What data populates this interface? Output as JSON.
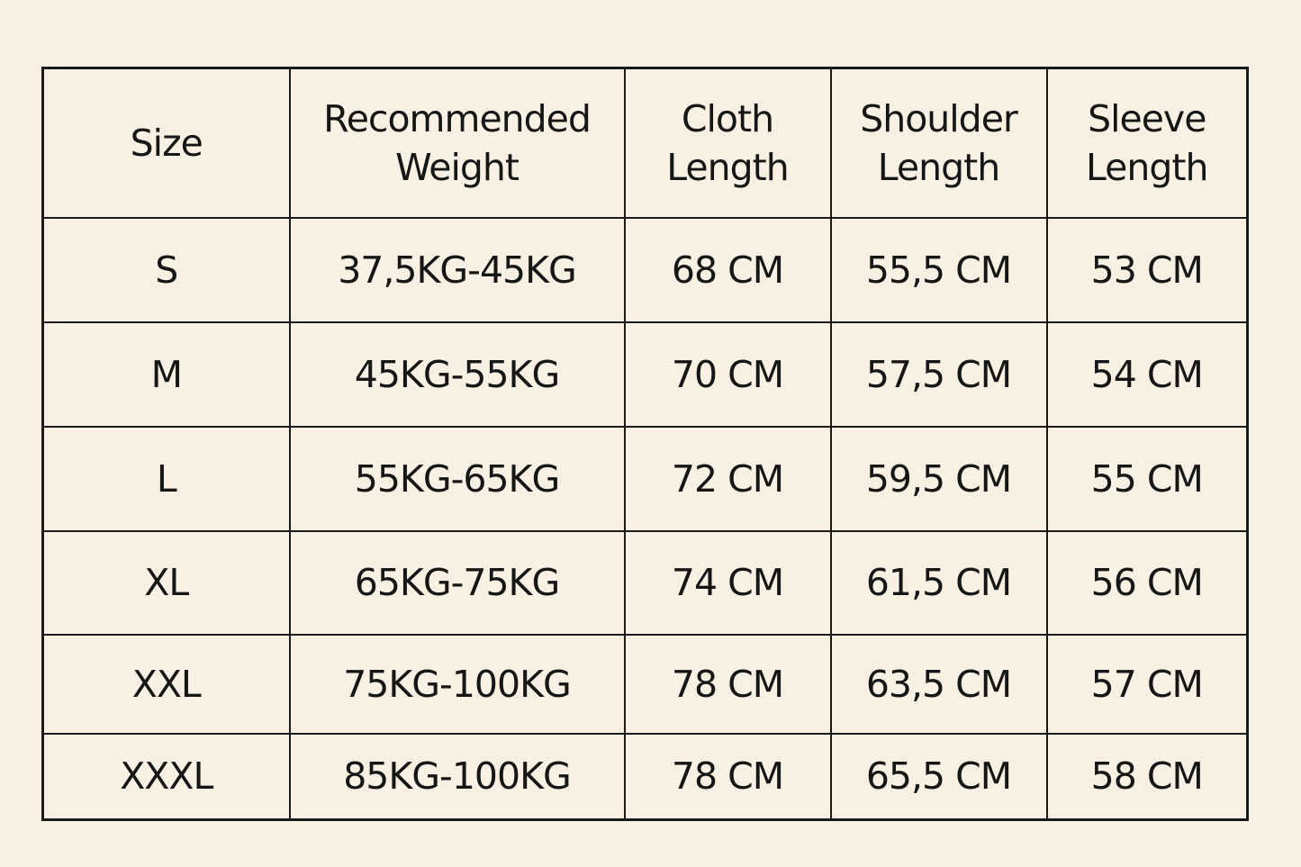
{
  "background_color": "#f8f0e2",
  "headers": [
    "Size",
    "Recommended Weight",
    "Cloth Length",
    "Shoulder Length",
    "Sleeve Length"
  ],
  "header_lines": [
    [
      "Size"
    ],
    [
      "Recommended",
      "Weight"
    ],
    [
      "Cloth",
      "Length"
    ],
    [
      "Shoulder",
      "Length"
    ],
    [
      "Sleeve",
      "Length"
    ]
  ],
  "rows": [
    [
      "S",
      "37,5KG-45KG",
      "68 CM",
      "55,5 CM",
      "53 CM"
    ],
    [
      "M",
      "45KG-55KG",
      "70 CM",
      "57,5 CM",
      "54 CM"
    ],
    [
      "L",
      "55KG-65KG",
      "72 CM",
      "59,5 CM",
      "55 CM"
    ],
    [
      "XL",
      "65KG-75KG",
      "74 CM",
      "61,5 CM",
      "56 CM"
    ],
    [
      "XXL",
      "75KG-100KG",
      "78 CM",
      "63,5 CM",
      "57 CM"
    ],
    [
      "XXXL",
      "85KG-100KG",
      "78 CM",
      "65,5 CM",
      "58 CM"
    ]
  ]
}
